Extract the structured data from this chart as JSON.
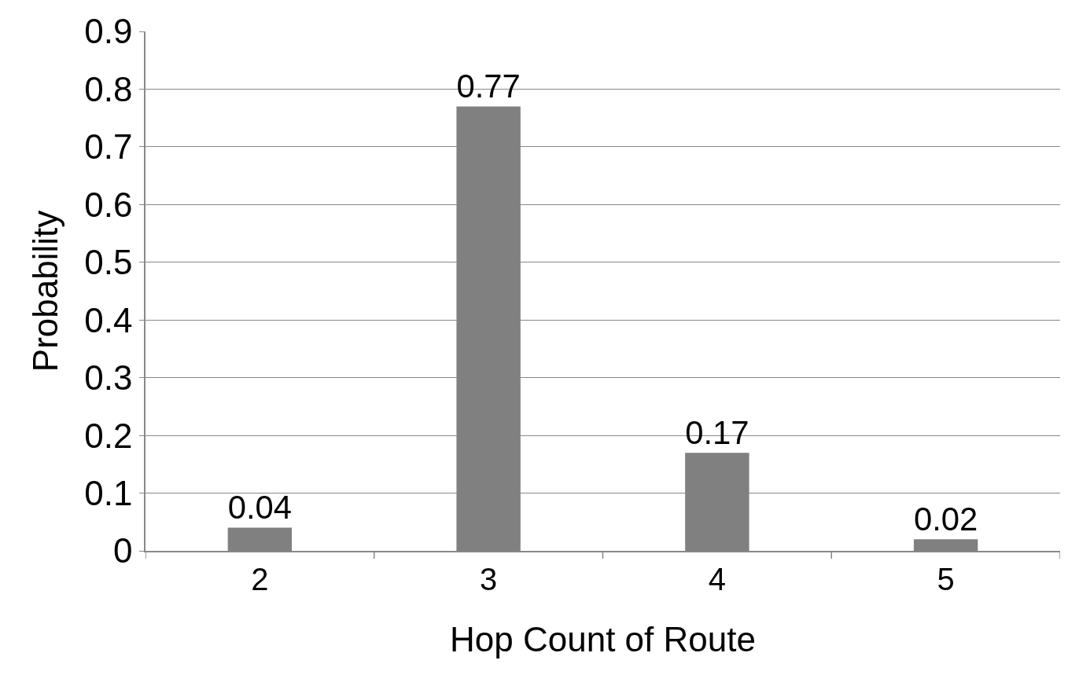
{
  "chart_data": {
    "type": "bar",
    "xlabel": "Hop Count of Route",
    "ylabel": "Probability",
    "categories": [
      "2",
      "3",
      "4",
      "5"
    ],
    "values": [
      0.04,
      0.77,
      0.17,
      0.02
    ],
    "color": "#808080",
    "ylim": [
      0,
      0.9
    ],
    "yticks": [
      0,
      0.1,
      0.2,
      0.3,
      0.4,
      0.5,
      0.6,
      0.7,
      0.8,
      0.9
    ],
    "grid": "y",
    "data_labels": true,
    "legend": false
  }
}
